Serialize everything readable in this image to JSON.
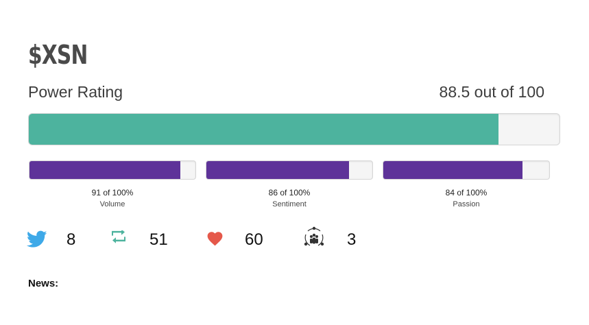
{
  "ticker": "$XSN",
  "power_rating": {
    "label": "Power Rating",
    "value_text": "88.5 out of 100",
    "value": 88.5,
    "max": 100
  },
  "metrics": [
    {
      "name": "Volume",
      "percent_text": "91 of 100%",
      "value": 91
    },
    {
      "name": "Sentiment",
      "percent_text": "86 of 100%",
      "value": 86
    },
    {
      "name": "Passion",
      "percent_text": "84 of 100%",
      "value": 84
    }
  ],
  "stats": {
    "tweets": {
      "icon": "twitter-bird-icon",
      "count": "8"
    },
    "retweets": {
      "icon": "retweet-icon",
      "count": "51"
    },
    "likes": {
      "icon": "heart-icon",
      "count": "60"
    },
    "users": {
      "icon": "users-network-icon",
      "count": "3"
    }
  },
  "news_label": "News:",
  "colors": {
    "power_bar": "#4db39e",
    "metric_bar": "#5e3399",
    "twitter_blue": "#3ea9e8",
    "retweet_green": "#4db39e",
    "heart_red": "#e5584a"
  }
}
